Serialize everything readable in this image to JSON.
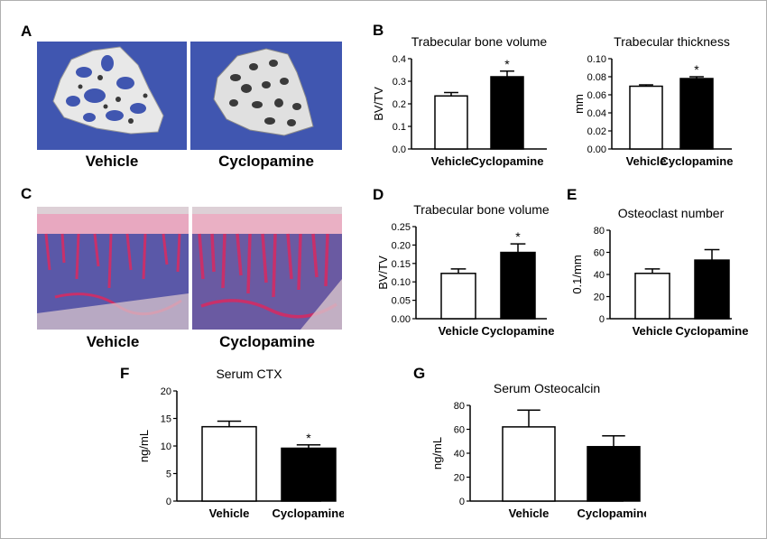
{
  "panels": {
    "a": {
      "letter": "A",
      "captions": [
        "Vehicle",
        "Cyclopamine"
      ]
    },
    "c": {
      "letter": "C",
      "captions": [
        "Vehicle",
        "Cyclopamine"
      ]
    }
  },
  "colors": {
    "micro_ct_background": "#4056b0",
    "bar_vehicle": "#ffffff",
    "bar_cyclopamine": "#000000",
    "histology_marrow": "#5a58a8",
    "histology_stain": "#c8306a"
  },
  "chart_data": [
    {
      "id": "chart-b1",
      "letter": "B",
      "type": "bar",
      "title": "Trabecular bone volume",
      "ylabel": "BV/TV",
      "categories": [
        "Vehicle",
        "Cyclopamine"
      ],
      "values": [
        0.235,
        0.32
      ],
      "errors": [
        0.015,
        0.025
      ],
      "significance": [
        "",
        "*"
      ],
      "ylim": [
        0,
        0.4
      ],
      "yticks": [
        0,
        0.1,
        0.2,
        0.3,
        0.4
      ],
      "ytick_labels": [
        "0.0",
        "0.1",
        "0.2",
        "0.3",
        "0.4"
      ],
      "legend": "none",
      "grid": false
    },
    {
      "id": "chart-b2",
      "letter": "",
      "type": "bar",
      "title": "Trabecular thickness",
      "ylabel": "mm",
      "categories": [
        "Vehicle",
        "Cyclopamine"
      ],
      "values": [
        0.0695,
        0.078
      ],
      "errors": [
        0.0015,
        0.002
      ],
      "significance": [
        "",
        "*"
      ],
      "ylim": [
        0,
        0.1
      ],
      "yticks": [
        0,
        0.02,
        0.04,
        0.06,
        0.08,
        0.1
      ],
      "ytick_labels": [
        "0.00",
        "0.02",
        "0.04",
        "0.06",
        "0.08",
        "0.10"
      ],
      "legend": "none",
      "grid": false
    },
    {
      "id": "chart-d",
      "letter": "D",
      "type": "bar",
      "title": "Trabecular bone volume",
      "ylabel": "BV/TV",
      "categories": [
        "Vehicle",
        "Cyclopamine"
      ],
      "values": [
        0.123,
        0.18
      ],
      "errors": [
        0.012,
        0.023
      ],
      "significance": [
        "",
        "*"
      ],
      "ylim": [
        0,
        0.25
      ],
      "yticks": [
        0,
        0.05,
        0.1,
        0.15,
        0.2,
        0.25
      ],
      "ytick_labels": [
        "0.00",
        "0.05",
        "0.10",
        "0.15",
        "0.20",
        "0.25"
      ],
      "legend": "none",
      "grid": false
    },
    {
      "id": "chart-e",
      "letter": "E",
      "type": "bar",
      "title": "Osteoclast number",
      "ylabel": "0.1/mm",
      "categories": [
        "Vehicle",
        "Cyclopamine"
      ],
      "values": [
        41,
        53
      ],
      "errors": [
        4,
        9.5
      ],
      "significance": [
        "",
        ""
      ],
      "ylim": [
        0,
        80
      ],
      "yticks": [
        0,
        20,
        40,
        60,
        80
      ],
      "ytick_labels": [
        "0",
        "20",
        "40",
        "60",
        "80"
      ],
      "legend": "none",
      "grid": false
    },
    {
      "id": "chart-f",
      "letter": "F",
      "type": "bar",
      "title": "Serum CTX",
      "ylabel": "ng/mL",
      "categories": [
        "Vehicle",
        "Cyclopamine"
      ],
      "values": [
        13.5,
        9.6
      ],
      "errors": [
        1.0,
        0.6
      ],
      "significance": [
        "",
        "*"
      ],
      "ylim": [
        0,
        20
      ],
      "yticks": [
        0,
        5,
        10,
        15,
        20
      ],
      "ytick_labels": [
        "0",
        "5",
        "10",
        "15",
        "20"
      ],
      "legend": "none",
      "grid": false
    },
    {
      "id": "chart-g",
      "letter": "G",
      "type": "bar",
      "title": "Serum Osteocalcin",
      "ylabel": "ng/mL",
      "categories": [
        "Vehicle",
        "Cyclopamine"
      ],
      "values": [
        62,
        45.5
      ],
      "errors": [
        14,
        9
      ],
      "significance": [
        "",
        ""
      ],
      "ylim": [
        0,
        80
      ],
      "yticks": [
        0,
        20,
        40,
        60,
        80
      ],
      "ytick_labels": [
        "0",
        "20",
        "40",
        "60",
        "80"
      ],
      "legend": "none",
      "grid": false
    }
  ]
}
